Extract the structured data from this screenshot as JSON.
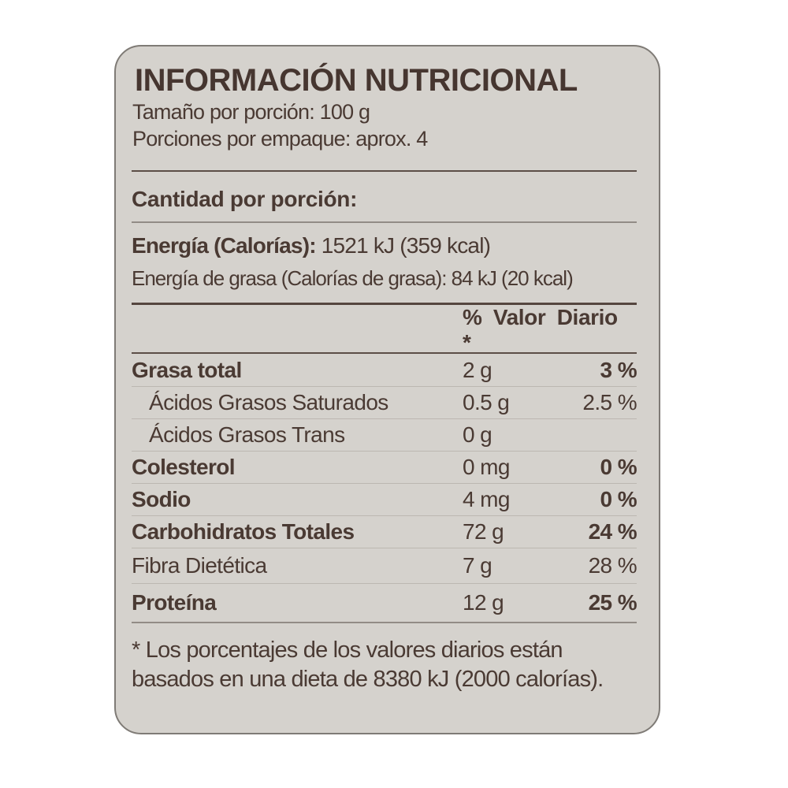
{
  "title": "INFORMACIÓN NUTRICIONAL",
  "serving": {
    "size_line": "Tamaño por porción: 100 g",
    "per_pack_line": "Porciones por empaque: aprox. 4"
  },
  "section": {
    "amount_per_serving": "Cantidad por porción:"
  },
  "energy": {
    "label": "Energía (Calorías):",
    "value": "1521 kJ (359 kcal)",
    "fat_line": "Energía de grasa (Calorías de grasa): 84 kJ (20 kcal)"
  },
  "table": {
    "dv_header": "% Valor Diario *",
    "rows": [
      {
        "name": "Grasa total",
        "amount": "2 g",
        "dv": "3 %"
      },
      {
        "name": "Ácidos Grasos Saturados",
        "amount": "0.5 g",
        "dv": "2.5 %"
      },
      {
        "name": "Ácidos Grasos Trans",
        "amount": "0 g",
        "dv": ""
      },
      {
        "name": "Colesterol",
        "amount": "0 mg",
        "dv": "0 %"
      },
      {
        "name": "Sodio",
        "amount": "4 mg",
        "dv": "0 %"
      },
      {
        "name": "Carbohidratos Totales",
        "amount": "72 g",
        "dv": "24 %"
      },
      {
        "name": "Fibra Dietética",
        "amount": "7 g",
        "dv": "28 %"
      },
      {
        "name": "Proteína",
        "amount": "12 g",
        "dv": "25 %"
      }
    ]
  },
  "footnote": "* Los porcentajes de los valores diarios están basados en una dieta de 8380 kJ (2000 calorías).",
  "colors": {
    "card_background": "#d5d2cd",
    "card_border": "#7f7b76",
    "text": "#4a3a33",
    "rule_dark": "#5c4e47",
    "rule_light": "#bcb7b1"
  }
}
